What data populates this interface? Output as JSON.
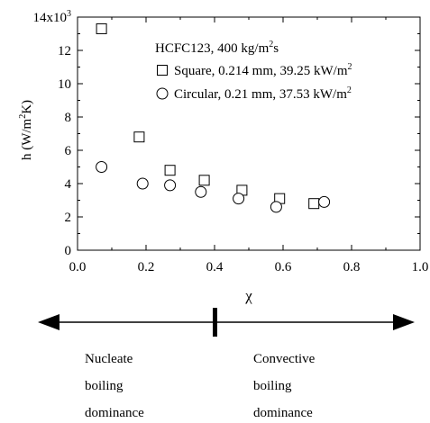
{
  "chart_data": {
    "type": "scatter",
    "title": "",
    "xlabel": "χ",
    "ylabel": "h (W/m",
    "ylabel_sup": "2",
    "ylabel_tail": "K)",
    "y_multiplier": "x10",
    "y_multiplier_exp": "3",
    "xlim": [
      0.0,
      1.0
    ],
    "ylim": [
      0,
      14
    ],
    "xticks": [
      "0.0",
      "0.2",
      "0.4",
      "0.6",
      "0.8",
      "1.0"
    ],
    "yticks": [
      "0",
      "2",
      "4",
      "6",
      "8",
      "10",
      "12",
      "14"
    ],
    "grid": false,
    "legend": {
      "title": "HCFC123, 400 kg/m",
      "title_sup": "2",
      "title_tail": "s",
      "placement": "top-right"
    },
    "series": [
      {
        "name": "Square, 0.214 mm, 39.25 kW/m",
        "name_sup": "2",
        "marker": "square",
        "x": [
          0.07,
          0.18,
          0.27,
          0.37,
          0.48,
          0.59,
          0.69
        ],
        "y": [
          13.3,
          6.8,
          4.8,
          4.2,
          3.6,
          3.1,
          2.8
        ]
      },
      {
        "name": "Circular, 0.21 mm, 37.53 kW/m",
        "name_sup": "2",
        "marker": "circle",
        "x": [
          0.07,
          0.19,
          0.27,
          0.36,
          0.47,
          0.58,
          0.72
        ],
        "y": [
          5.0,
          4.0,
          3.9,
          3.5,
          3.1,
          2.6,
          2.9
        ]
      }
    ]
  },
  "annotations": {
    "left_lines": [
      "Nucleate",
      "boiling",
      "dominance"
    ],
    "right_lines": [
      "Convective",
      "boiling",
      "dominance"
    ]
  }
}
